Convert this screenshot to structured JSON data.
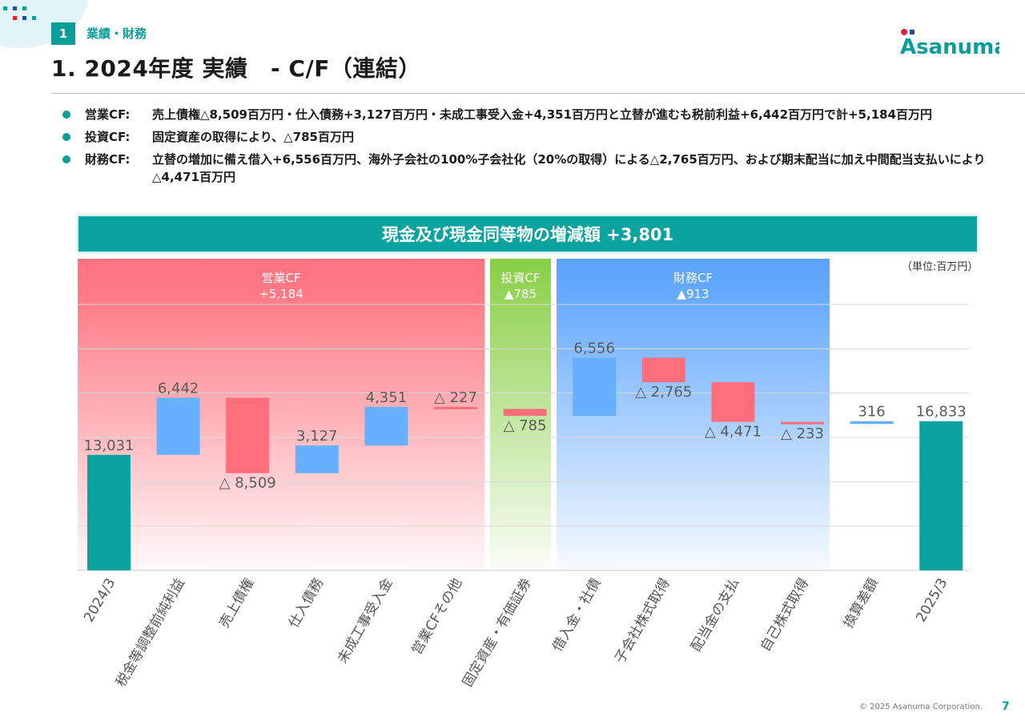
{
  "header": {
    "section_number": "1",
    "section_label": "業績・財務",
    "title": "1. 2024年度 実績　- C/F（連結）",
    "logo_text": "Asanuma"
  },
  "bullets": [
    {
      "label": "営業CF:",
      "text": "売上債権△8,509百万円・仕入債務+3,127百万円・未成工事受入金+4,351百万円と立替が進むも税前利益+6,442百万円で計+5,184百万円"
    },
    {
      "label": "投資CF:",
      "text": "固定資産の取得により、△785百万円"
    },
    {
      "label": "財務CF:",
      "text": "立替の増加に備え借入+6,556百万円、海外子会社の100%子会社化（20%の取得）による△2,765百万円、および期末配当に加え中間配当支払いにより△4,471百万円"
    }
  ],
  "banner": "現金及び現金同等物の増減額 +3,801",
  "unit_label": "（単位:百万円）",
  "footer": {
    "copyright": "© 2025 Asanuma Corporation.",
    "page_number": "7"
  },
  "colors": {
    "teal": "#0aa39f",
    "increase": "#66b0ff",
    "decrease": "#ff6e7a",
    "operating_band": "#ff7480",
    "investing_band": "#8dd04a",
    "financing_band": "#5ea6ff"
  },
  "chart_data": {
    "type": "bar",
    "subtype": "waterfall",
    "ylim": [
      0,
      30000
    ],
    "grid": true,
    "groups": [
      {
        "name": "営業CF",
        "value_label": "+5,184",
        "from": 1,
        "to": 5
      },
      {
        "name": "投資CF",
        "value_label": "▲785",
        "from": 6,
        "to": 6
      },
      {
        "name": "財務CF",
        "value_label": "▲913",
        "from": 7,
        "to": 10
      }
    ],
    "categories": [
      "2024/3",
      "税金等調整前純利益",
      "売上債権",
      "仕入債務",
      "未成工事受入金",
      "営業CFその他",
      "固定資産・有価証券",
      "借入金・社債",
      "子会社株式取得",
      "配当金の支払",
      "自己株式取得",
      "換算差額",
      "2025/3"
    ],
    "values": [
      13031,
      6442,
      -8509,
      3127,
      4351,
      -227,
      -785,
      6556,
      -2765,
      -4471,
      -233,
      316,
      16833
    ],
    "kinds": [
      "total",
      "delta",
      "delta",
      "delta",
      "delta",
      "delta",
      "delta",
      "delta",
      "delta",
      "delta",
      "delta",
      "delta",
      "total"
    ],
    "data_labels": [
      "13,031",
      "6,442",
      "△ 8,509",
      "3,127",
      "4,351",
      "△ 227",
      "△ 785",
      "6,556",
      "△ 2,765",
      "△ 4,471",
      "△ 233",
      "316",
      "16,833"
    ]
  }
}
